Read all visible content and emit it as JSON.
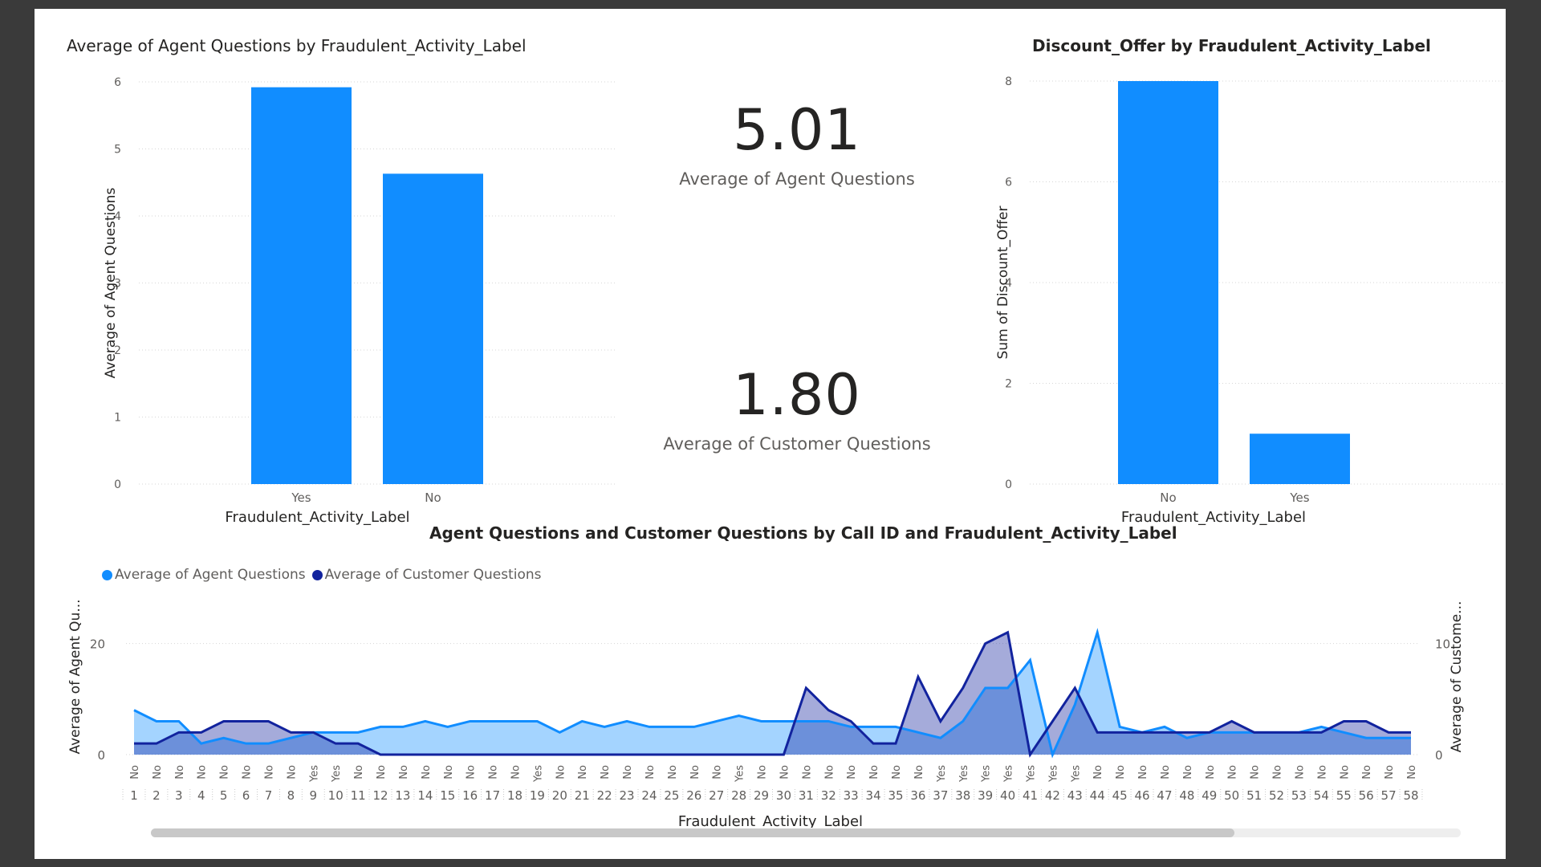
{
  "chart1": {
    "title": "Average of Agent Questions by Fraudulent_Activity_Label",
    "ylabel": "Average of Agent Questions",
    "xlabel": "Fraudulent_Activity_Label",
    "bar_color": "#118DFF"
  },
  "cards": {
    "agent_value": "5.01",
    "agent_label": "Average of Agent Questions",
    "customer_value": "1.80",
    "customer_label": "Average of Customer Questions"
  },
  "chart2": {
    "title": "Discount_Offer by Fraudulent_Activity_Label",
    "ylabel": "Sum of Discount_Offer",
    "xlabel": "Fraudulent_Activity_Label",
    "bar_color": "#118DFF"
  },
  "chart3": {
    "title": "Agent Questions and Customer Questions by Call ID and Fraudulent_Activity_Label",
    "legend": [
      {
        "label": "Average of Agent Questions",
        "color": "#118DFF"
      },
      {
        "label": "Average of Customer Questions",
        "color": "#12239E"
      }
    ],
    "ylabel_left": "Average of Agent Qu...",
    "ylabel_right": "Average of Custome...",
    "xlabel": "Fraudulent_Activity_Label"
  },
  "chart_data": [
    {
      "type": "bar",
      "title": "Average of Agent Questions by Fraudulent_Activity_Label",
      "xlabel": "Fraudulent_Activity_Label",
      "ylabel": "Average of Agent Questions",
      "categories": [
        "Yes",
        "No"
      ],
      "values": [
        5.92,
        4.63
      ],
      "ylim": [
        0,
        6
      ],
      "yticks": [
        "0",
        "1",
        "2",
        "3",
        "4",
        "5",
        "6"
      ],
      "grid": true
    },
    {
      "type": "bar",
      "title": "Discount_Offer by Fraudulent_Activity_Label",
      "xlabel": "Fraudulent_Activity_Label",
      "ylabel": "Sum of Discount_Offer",
      "categories": [
        "No",
        "Yes"
      ],
      "values": [
        8,
        1
      ],
      "ylim": [
        0,
        8
      ],
      "yticks": [
        "0",
        "2",
        "4",
        "6",
        "8"
      ],
      "grid": true
    },
    {
      "type": "area",
      "title": "Agent Questions and Customer Questions by Call ID and Fraudulent_Activity_Label",
      "xlabel": "Fraudulent_Activity_Label",
      "call_ids": [
        "1",
        "2",
        "3",
        "4",
        "5",
        "6",
        "7",
        "8",
        "9",
        "10",
        "11",
        "12",
        "13",
        "14",
        "15",
        "16",
        "17",
        "18",
        "19",
        "20",
        "21",
        "22",
        "23",
        "24",
        "25",
        "26",
        "27",
        "28",
        "29",
        "30",
        "31",
        "32",
        "33",
        "34",
        "35",
        "36",
        "37",
        "38",
        "39",
        "40",
        "41",
        "42",
        "43",
        "44",
        "45",
        "46",
        "47",
        "48",
        "49",
        "50",
        "51",
        "52",
        "53",
        "54",
        "55",
        "56",
        "57",
        "58"
      ],
      "labels": [
        "No",
        "No",
        "No",
        "No",
        "No",
        "No",
        "No",
        "No",
        "Yes",
        "Yes",
        "No",
        "No",
        "No",
        "No",
        "No",
        "No",
        "No",
        "No",
        "Yes",
        "No",
        "No",
        "No",
        "No",
        "No",
        "No",
        "No",
        "No",
        "Yes",
        "No",
        "No",
        "No",
        "No",
        "No",
        "No",
        "No",
        "No",
        "Yes",
        "Yes",
        "Yes",
        "Yes",
        "Yes",
        "Yes",
        "Yes",
        "No",
        "No",
        "No",
        "No",
        "No",
        "No",
        "No",
        "No",
        "No",
        "No",
        "No",
        "No",
        "No",
        "No",
        "No"
      ],
      "left_axis": {
        "ylim": [
          0,
          25
        ],
        "ticks": [
          "0",
          "20"
        ]
      },
      "right_axis": {
        "ylim": [
          0,
          12.5
        ],
        "ticks": [
          "0",
          "10"
        ]
      },
      "series": [
        {
          "name": "Average of Agent Questions",
          "axis": "left",
          "values": [
            8,
            6,
            6,
            2,
            3,
            2,
            2,
            3,
            4,
            4,
            4,
            5,
            5,
            6,
            5,
            6,
            6,
            6,
            6,
            4,
            6,
            5,
            6,
            5,
            5,
            5,
            6,
            7,
            6,
            6,
            6,
            6,
            5,
            5,
            5,
            4,
            3,
            6,
            12,
            12,
            17,
            0,
            9,
            22,
            5,
            4,
            5,
            3,
            4,
            4,
            4,
            4,
            4,
            5,
            4,
            3,
            3,
            3
          ]
        },
        {
          "name": "Average of Customer Questions",
          "axis": "right",
          "values": [
            1,
            1,
            2,
            2,
            3,
            3,
            3,
            2,
            2,
            1,
            1,
            0,
            0,
            0,
            0,
            0,
            0,
            0,
            0,
            0,
            0,
            0,
            0,
            0,
            0,
            0,
            0,
            0,
            0,
            0,
            6,
            4,
            3,
            1,
            1,
            7,
            3,
            6,
            10,
            11,
            0,
            3,
            6,
            2,
            2,
            2,
            2,
            2,
            2,
            3,
            2,
            2,
            2,
            2,
            3,
            3,
            2,
            2
          ]
        }
      ]
    }
  ]
}
